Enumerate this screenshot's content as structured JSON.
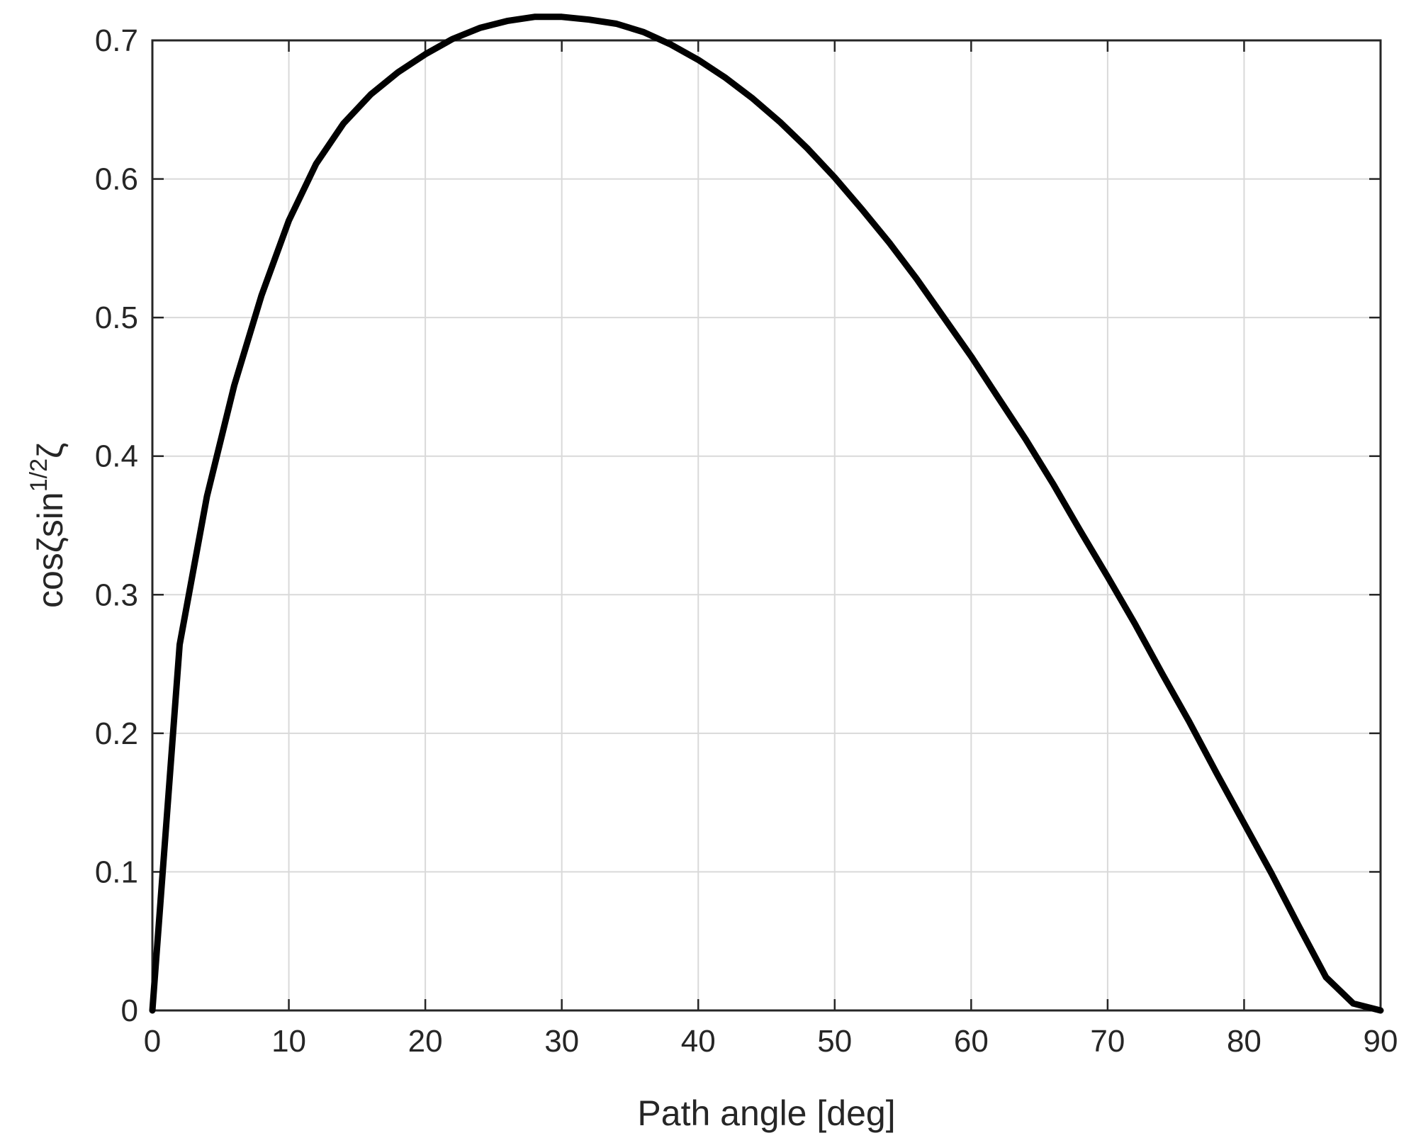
{
  "chart_data": {
    "type": "line",
    "title": "",
    "xlabel": "Path angle [deg]",
    "ylabel_parts": {
      "base": "cosζsin",
      "sup": "1/2",
      "tail": "ζ"
    },
    "xlim": [
      0,
      90
    ],
    "ylim": [
      0,
      0.7
    ],
    "xticks": [
      0,
      10,
      20,
      30,
      40,
      50,
      60,
      70,
      80,
      90
    ],
    "yticks": [
      0,
      0.1,
      0.2,
      0.3,
      0.4,
      0.5,
      0.6,
      0.7
    ],
    "xtick_labels": [
      "0",
      "10",
      "20",
      "30",
      "40",
      "50",
      "60",
      "70",
      "80",
      "90"
    ],
    "ytick_labels": [
      "0",
      "0.1",
      "0.2",
      "0.3",
      "0.4",
      "0.5",
      "0.6",
      "0.7"
    ],
    "grid": true,
    "colors": {
      "line": "#000000",
      "grid": "#d9d9d9",
      "axis": "#262626"
    },
    "series": [
      {
        "x": [
          0,
          2,
          4,
          6,
          8,
          10,
          12,
          14,
          16,
          18,
          20,
          22,
          24,
          26,
          28,
          30,
          32,
          34,
          36,
          38,
          40,
          42,
          44,
          46,
          48,
          50,
          52,
          54,
          56,
          58,
          60,
          62,
          64,
          66,
          68,
          70,
          72,
          74,
          76,
          78,
          80,
          82,
          84,
          86,
          88,
          90
        ],
        "values": [
          0,
          0.264,
          0.371,
          0.451,
          0.516,
          0.57,
          0.611,
          0.64,
          0.661,
          0.677,
          0.69,
          0.701,
          0.709,
          0.714,
          0.717,
          0.717,
          0.715,
          0.712,
          0.706,
          0.697,
          0.686,
          0.673,
          0.658,
          0.641,
          0.622,
          0.601,
          0.578,
          0.554,
          0.528,
          0.5,
          0.472,
          0.442,
          0.412,
          0.38,
          0.346,
          0.313,
          0.279,
          0.243,
          0.208,
          0.171,
          0.135,
          0.099,
          0.061,
          0.024,
          0.005,
          0
        ]
      }
    ]
  }
}
